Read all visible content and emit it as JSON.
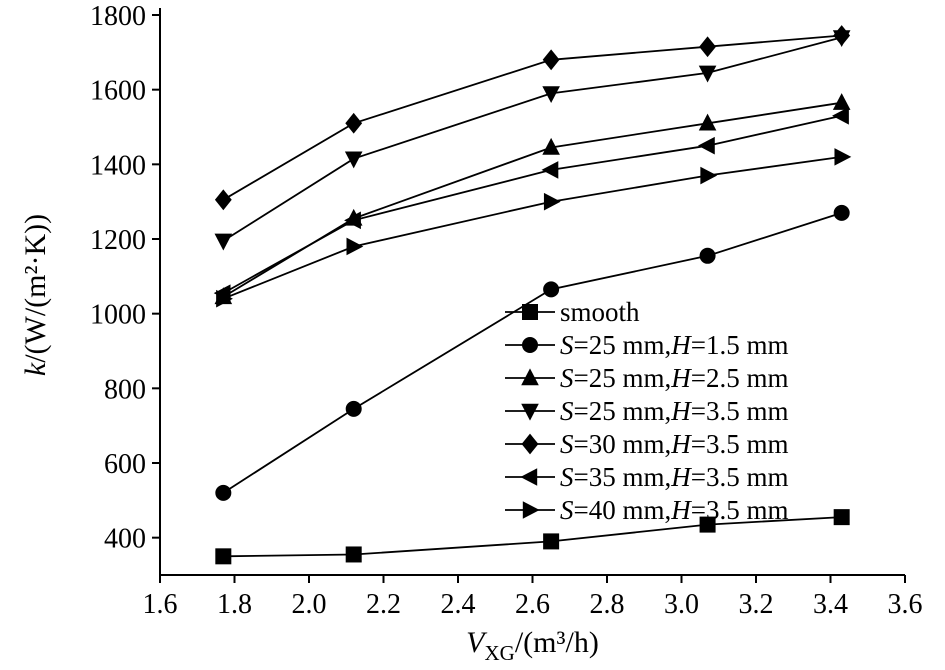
{
  "chart_data": {
    "type": "line",
    "x": [
      1.77,
      2.12,
      2.65,
      3.07,
      3.43
    ],
    "series": [
      {
        "name": "smooth",
        "marker": "square",
        "values": [
          350,
          355,
          390,
          435,
          455
        ]
      },
      {
        "name": "S=25 mm,H=1.5 mm",
        "marker": "circle",
        "values": [
          520,
          745,
          1065,
          1155,
          1270
        ]
      },
      {
        "name": "S=25 mm,H=2.5 mm",
        "marker": "triangle-up",
        "values": [
          1045,
          1255,
          1445,
          1510,
          1565
        ]
      },
      {
        "name": "S=25 mm,H=3.5 mm",
        "marker": "triangle-down",
        "values": [
          1195,
          1415,
          1590,
          1645,
          1740
        ]
      },
      {
        "name": "S=30 mm,H=3.5 mm",
        "marker": "diamond",
        "values": [
          1305,
          1510,
          1680,
          1715,
          1745
        ]
      },
      {
        "name": "S=35 mm,H=3.5 mm",
        "marker": "triangle-left",
        "values": [
          1055,
          1250,
          1385,
          1450,
          1530
        ]
      },
      {
        "name": "S=40 mm,H=3.5 mm",
        "marker": "triangle-right",
        "values": [
          1040,
          1180,
          1300,
          1370,
          1420
        ]
      }
    ],
    "xlabel": "V_XG/(m³/h)",
    "ylabel": "k/(W/(m²·K))",
    "xlim": [
      1.6,
      3.6
    ],
    "ylim": [
      300,
      1800
    ],
    "xticks": [
      1.6,
      1.8,
      2.0,
      2.2,
      2.4,
      2.6,
      2.8,
      3.0,
      3.2,
      3.4,
      3.6
    ],
    "yticks": [
      400,
      600,
      800,
      1000,
      1200,
      1400,
      1600,
      1800
    ],
    "grid": false,
    "legend_position": "inside-right-middle",
    "color": "#000000"
  },
  "xlabel_parts": {
    "var": "V",
    "sub": "XG",
    "rest": "/(m³/h)"
  },
  "ylabel_parts": {
    "var": "k",
    "rest": "/(W/(m²·K))"
  }
}
